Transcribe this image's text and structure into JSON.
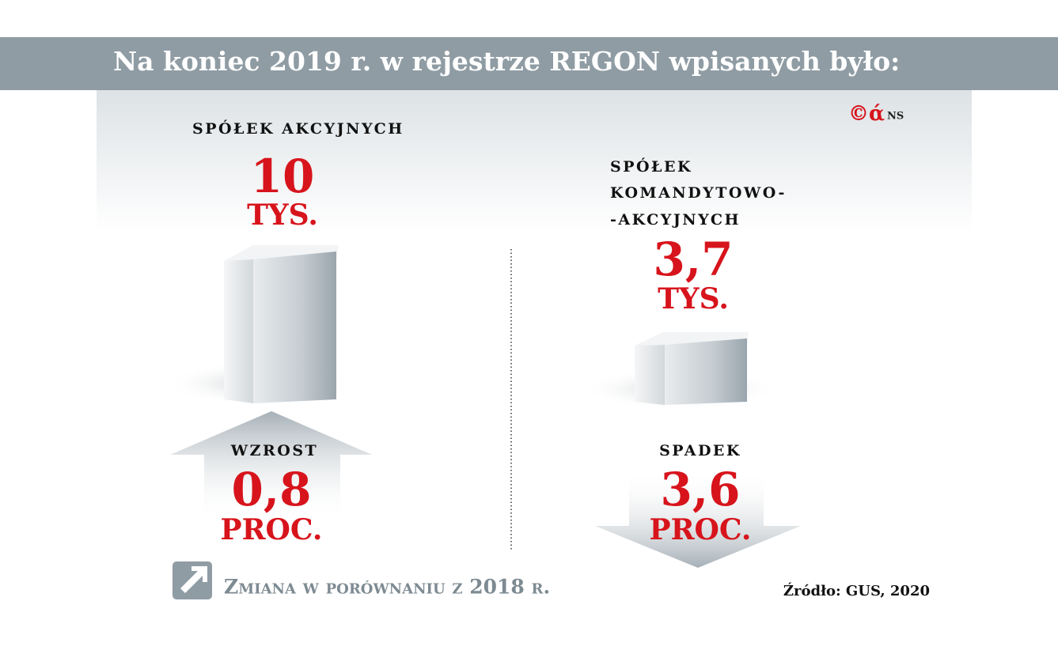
{
  "header": {
    "title": "Na koniec 2019 r. w rejestrze REGON wpisanych było:"
  },
  "logo": {
    "mark": "©ά",
    "text": "NS"
  },
  "panels": [
    {
      "label_lines": [
        "SPÓŁEK AKCYJNYCH"
      ],
      "value": "10",
      "unit": "TYS.",
      "change_label": "WZROST",
      "change_value": "0,8",
      "change_unit": "PROC."
    },
    {
      "label_lines": [
        "SPÓŁEK",
        "KOMANDYTOWO-",
        "-AKCYJNYCH"
      ],
      "value": "3,7",
      "unit": "TYS.",
      "change_label": "SPADEK",
      "change_value": "3,6",
      "change_unit": "PROC."
    }
  ],
  "legend": "Zmiana w porównaniu z 2018 r.",
  "source": "Źródło: GUS, 2020"
}
